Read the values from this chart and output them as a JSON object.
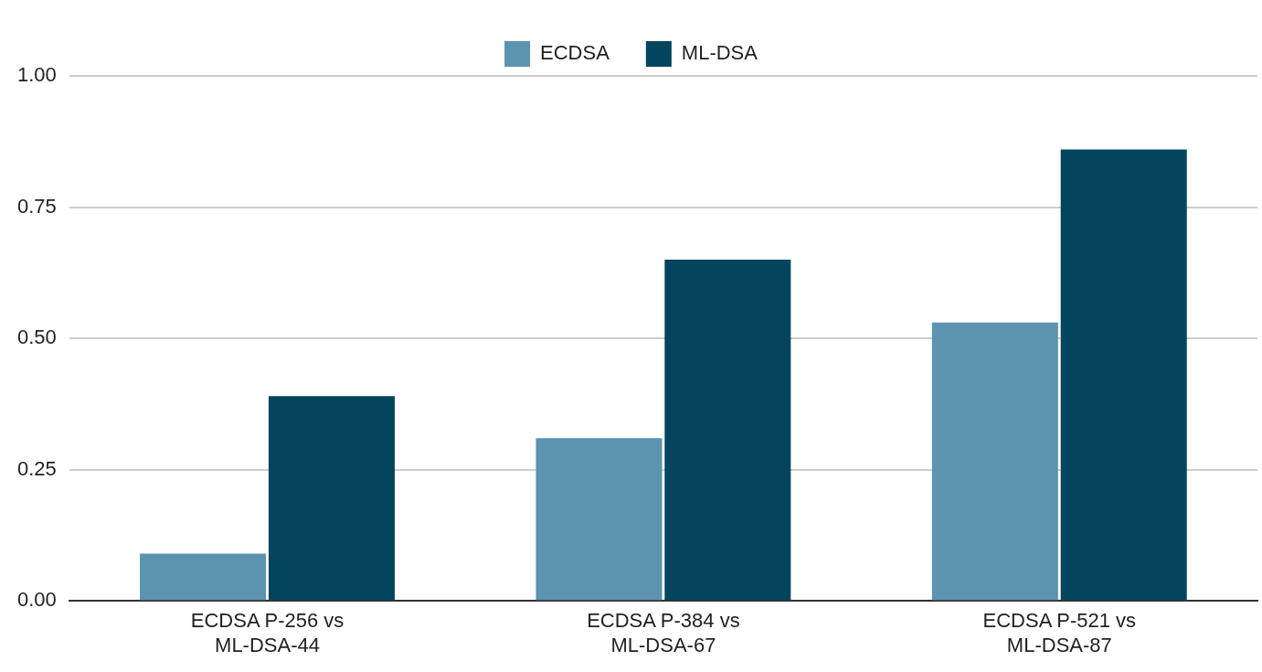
{
  "chart_data": {
    "type": "bar",
    "categories": [
      "ECDSA P-256 vs ML-DSA-44",
      "ECDSA P-384 vs ML-DSA-67",
      "ECDSA P-521 vs ML-DSA-87"
    ],
    "series": [
      {
        "name": "ECDSA",
        "color": "#5b93b0",
        "values": [
          0.09,
          0.31,
          0.53
        ]
      },
      {
        "name": "ML-DSA",
        "color": "#03455f",
        "values": [
          0.39,
          0.65,
          0.86
        ]
      }
    ],
    "ylim": [
      0,
      1
    ],
    "yticks": [
      {
        "value": 0,
        "label": "0.00"
      },
      {
        "value": 0.25,
        "label": "0.25"
      },
      {
        "value": 0.5,
        "label": "0.50"
      },
      {
        "value": 0.75,
        "label": "0.75"
      },
      {
        "value": 1,
        "label": "1.00"
      }
    ],
    "grid": "y",
    "legend": "top"
  }
}
